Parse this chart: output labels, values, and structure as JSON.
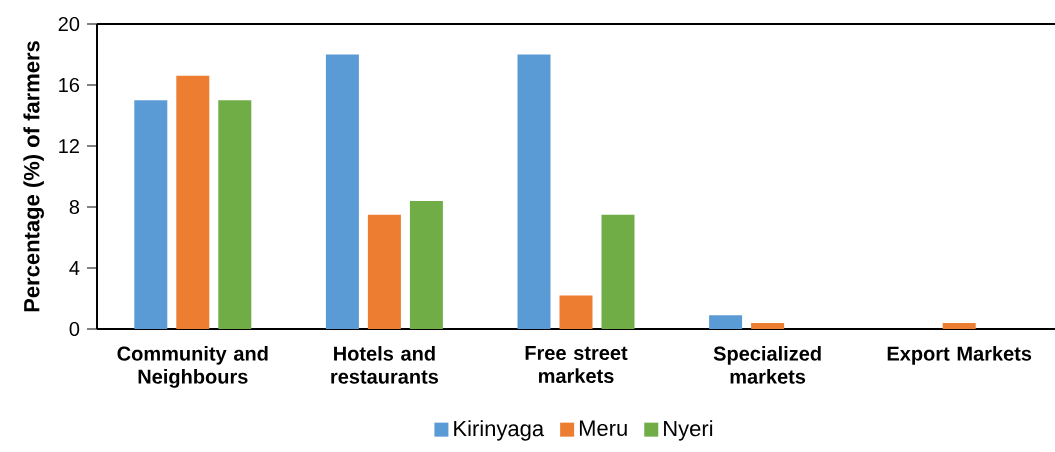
{
  "chart_data": {
    "type": "bar",
    "ylabel": "Percentage (%) of farmers",
    "categories": [
      "Community and Neighbours",
      "Hotels and restaurants",
      "Free street markets",
      "Specialized markets",
      "Export Markets"
    ],
    "series": [
      {
        "name": "Kirinyaga",
        "color": "#5b9bd5",
        "values": [
          15,
          18,
          18,
          0.9,
          0
        ]
      },
      {
        "name": "Meru",
        "color": "#ed7d31",
        "values": [
          16.6,
          7.5,
          2.2,
          0.4,
          0.4
        ]
      },
      {
        "name": "Nyeri",
        "color": "#70ad47",
        "values": [
          15,
          8.4,
          7.5,
          0,
          0
        ]
      }
    ],
    "ylim": [
      0,
      20
    ],
    "yticks": [
      0,
      4,
      8,
      12,
      16,
      20
    ],
    "grid": false,
    "legend": "bottom"
  }
}
